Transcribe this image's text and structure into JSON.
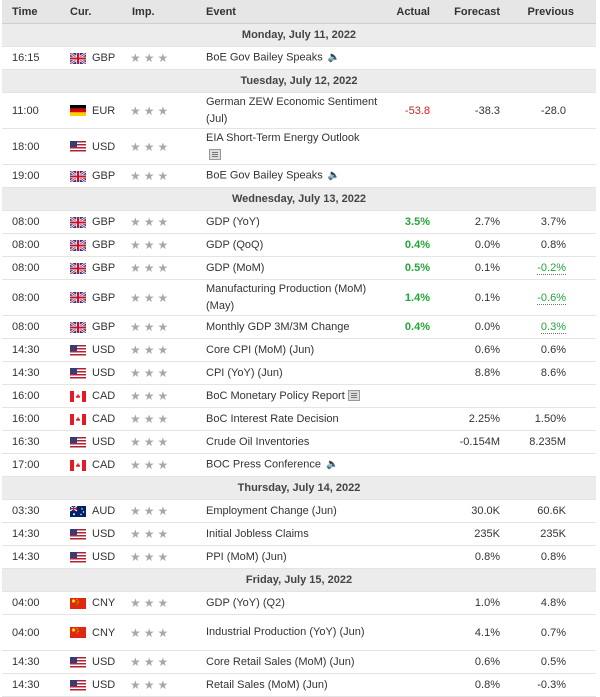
{
  "header": {
    "time": "Time",
    "cur": "Cur.",
    "imp": "Imp.",
    "event": "Event",
    "actual": "Actual",
    "forecast": "Forecast",
    "previous": "Previous"
  },
  "colors": {
    "actual_red": "#d61d1d",
    "actual_green": "#22a63a",
    "header_bg": "#e6e6e6"
  },
  "rows": [
    {
      "type": "date",
      "label": "Monday, July 11, 2022"
    },
    {
      "type": "event",
      "time": "16:15",
      "flag": "gb",
      "currency": "GBP",
      "event": "BoE Gov Bailey Speaks",
      "icon": "speaker-icon",
      "actual": "",
      "actual_class": "",
      "forecast": "",
      "previous": "",
      "prev_class": ""
    },
    {
      "type": "date",
      "label": "Tuesday, July 12, 2022"
    },
    {
      "type": "event",
      "time": "11:00",
      "flag": "de",
      "currency": "EUR",
      "event": "German ZEW Economic Sentiment (Jul)",
      "icon": "",
      "actual": "-53.8",
      "actual_class": "red",
      "forecast": "-38.3",
      "previous": "-28.0",
      "prev_class": ""
    },
    {
      "type": "event",
      "time": "18:00",
      "flag": "us",
      "currency": "USD",
      "event": "EIA Short-Term Energy Outlook",
      "icon": "report-icon",
      "actual": "",
      "actual_class": "",
      "forecast": "",
      "previous": "",
      "prev_class": ""
    },
    {
      "type": "event",
      "time": "19:00",
      "flag": "gb",
      "currency": "GBP",
      "event": "BoE Gov Bailey Speaks",
      "icon": "speaker-icon",
      "actual": "",
      "actual_class": "",
      "forecast": "",
      "previous": "",
      "prev_class": ""
    },
    {
      "type": "date",
      "label": "Wednesday, July 13, 2022"
    },
    {
      "type": "event",
      "time": "08:00",
      "flag": "gb",
      "currency": "GBP",
      "event": "GDP (YoY)",
      "icon": "",
      "actual": "3.5%",
      "actual_class": "green",
      "forecast": "2.7%",
      "previous": "3.7%",
      "prev_class": ""
    },
    {
      "type": "event",
      "time": "08:00",
      "flag": "gb",
      "currency": "GBP",
      "event": "GDP (QoQ)",
      "icon": "",
      "actual": "0.4%",
      "actual_class": "green",
      "forecast": "0.0%",
      "previous": "0.8%",
      "prev_class": ""
    },
    {
      "type": "event",
      "time": "08:00",
      "flag": "gb",
      "currency": "GBP",
      "event": "GDP (MoM)",
      "icon": "",
      "actual": "0.5%",
      "actual_class": "green",
      "forecast": "0.1%",
      "previous": "-0.2%",
      "prev_class": "und"
    },
    {
      "type": "event",
      "time": "08:00",
      "flag": "gb",
      "currency": "GBP",
      "event": "Manufacturing Production (MoM) (May)",
      "icon": "",
      "actual": "1.4%",
      "actual_class": "green",
      "forecast": "0.1%",
      "previous": "-0.6%",
      "prev_class": "und"
    },
    {
      "type": "event",
      "time": "08:00",
      "flag": "gb",
      "currency": "GBP",
      "event": "Monthly GDP 3M/3M Change",
      "icon": "",
      "actual": "0.4%",
      "actual_class": "green",
      "forecast": "0.0%",
      "previous": "0.3%",
      "prev_class": "und"
    },
    {
      "type": "event",
      "time": "14:30",
      "flag": "us",
      "currency": "USD",
      "event": "Core CPI (MoM) (Jun)",
      "icon": "",
      "actual": "",
      "actual_class": "",
      "forecast": "0.6%",
      "previous": "0.6%",
      "prev_class": ""
    },
    {
      "type": "event",
      "time": "14:30",
      "flag": "us",
      "currency": "USD",
      "event": "CPI (YoY) (Jun)",
      "icon": "",
      "actual": "",
      "actual_class": "",
      "forecast": "8.8%",
      "previous": "8.6%",
      "prev_class": ""
    },
    {
      "type": "event",
      "time": "16:00",
      "flag": "ca",
      "currency": "CAD",
      "event": "BoC Monetary Policy Report",
      "icon": "report-icon",
      "actual": "",
      "actual_class": "",
      "forecast": "",
      "previous": "",
      "prev_class": ""
    },
    {
      "type": "event",
      "time": "16:00",
      "flag": "ca",
      "currency": "CAD",
      "event": "BoC Interest Rate Decision",
      "icon": "",
      "actual": "",
      "actual_class": "",
      "forecast": "2.25%",
      "previous": "1.50%",
      "prev_class": ""
    },
    {
      "type": "event",
      "time": "16:30",
      "flag": "us",
      "currency": "USD",
      "event": "Crude Oil Inventories",
      "icon": "",
      "actual": "",
      "actual_class": "",
      "forecast": "-0.154M",
      "previous": "8.235M",
      "prev_class": ""
    },
    {
      "type": "event",
      "time": "17:00",
      "flag": "ca",
      "currency": "CAD",
      "event": "BOC Press Conference",
      "icon": "speaker-icon",
      "actual": "",
      "actual_class": "",
      "forecast": "",
      "previous": "",
      "prev_class": ""
    },
    {
      "type": "date",
      "label": "Thursday, July 14, 2022"
    },
    {
      "type": "event",
      "time": "03:30",
      "flag": "au",
      "currency": "AUD",
      "event": "Employment Change (Jun)",
      "icon": "",
      "actual": "",
      "actual_class": "",
      "forecast": "30.0K",
      "previous": "60.6K",
      "prev_class": ""
    },
    {
      "type": "event",
      "time": "14:30",
      "flag": "us",
      "currency": "USD",
      "event": "Initial Jobless Claims",
      "icon": "",
      "actual": "",
      "actual_class": "",
      "forecast": "235K",
      "previous": "235K",
      "prev_class": ""
    },
    {
      "type": "event",
      "time": "14:30",
      "flag": "us",
      "currency": "USD",
      "event": "PPI (MoM) (Jun)",
      "icon": "",
      "actual": "",
      "actual_class": "",
      "forecast": "0.8%",
      "previous": "0.8%",
      "prev_class": ""
    },
    {
      "type": "date",
      "label": "Friday, July 15, 2022"
    },
    {
      "type": "event",
      "time": "04:00",
      "flag": "cn",
      "currency": "CNY",
      "event": "GDP (YoY) (Q2)",
      "icon": "",
      "actual": "",
      "actual_class": "",
      "forecast": "1.0%",
      "previous": "4.8%",
      "prev_class": ""
    },
    {
      "type": "event",
      "time": "04:00",
      "flag": "cn",
      "currency": "CNY",
      "event": "Industrial Production (YoY) (Jun)",
      "icon": "",
      "actual": "",
      "actual_class": "",
      "forecast": "4.1%",
      "previous": "0.7%",
      "prev_class": ""
    },
    {
      "type": "event",
      "time": "14:30",
      "flag": "us",
      "currency": "USD",
      "event": "Core Retail Sales (MoM) (Jun)",
      "icon": "",
      "actual": "",
      "actual_class": "",
      "forecast": "0.6%",
      "previous": "0.5%",
      "prev_class": ""
    },
    {
      "type": "event",
      "time": "14:30",
      "flag": "us",
      "currency": "USD",
      "event": "Retail Sales (MoM) (Jun)",
      "icon": "",
      "actual": "",
      "actual_class": "",
      "forecast": "0.8%",
      "previous": "-0.3%",
      "prev_class": ""
    }
  ]
}
